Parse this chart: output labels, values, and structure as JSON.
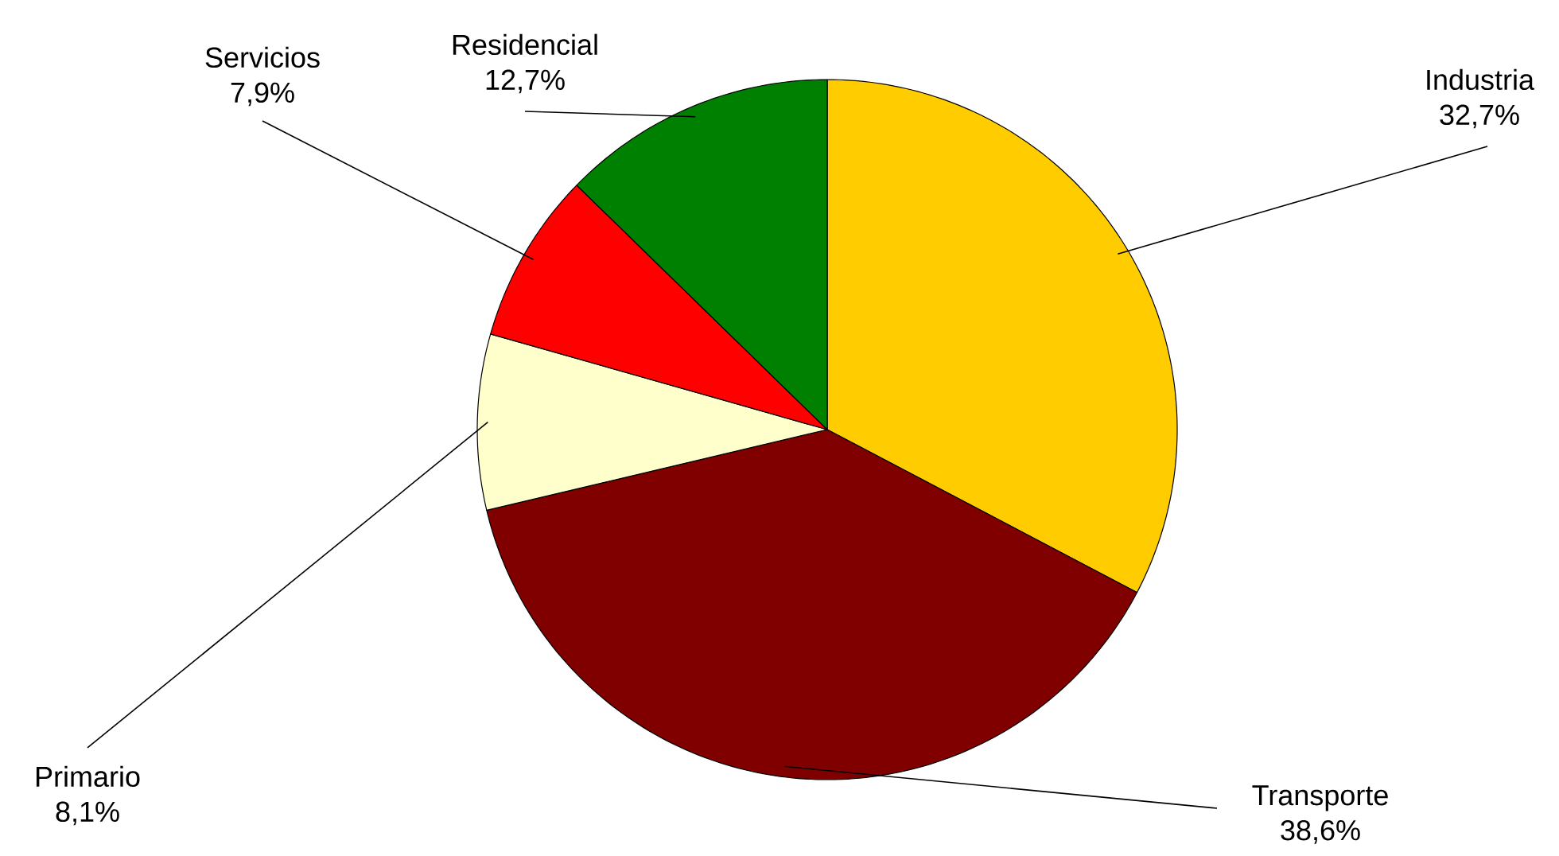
{
  "chart_data": {
    "type": "pie",
    "categories": [
      "Industria",
      "Transporte",
      "Primario",
      "Servicios",
      "Residencial"
    ],
    "values": [
      32.7,
      38.6,
      8.1,
      7.9,
      12.7
    ],
    "value_labels": [
      "32,7%",
      "38,6%",
      "8,1%",
      "7,9%",
      "12,7%"
    ],
    "colors": [
      "#ffcc00",
      "#800000",
      "#ffffcc",
      "#ff0000",
      "#008000"
    ]
  }
}
